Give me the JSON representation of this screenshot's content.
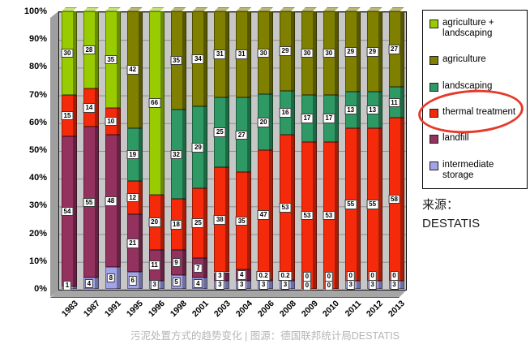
{
  "chart_data": {
    "type": "bar",
    "stacked": true,
    "unit": "percent",
    "title": "",
    "xlabel": "",
    "ylabel": "",
    "ylim": [
      0,
      100
    ],
    "grid": true,
    "legend_position": "right",
    "y_ticks": [
      "100%",
      "90%",
      "80%",
      "70%",
      "60%",
      "50%",
      "40%",
      "30%",
      "20%",
      "10%",
      "0%"
    ],
    "categories": [
      "1983",
      "1987",
      "1991",
      "1995",
      "1996",
      "1998",
      "2001",
      "2003",
      "2004",
      "2006",
      "2008",
      "2009",
      "2010",
      "2011",
      "2012",
      "2013"
    ],
    "series": [
      {
        "name": "intermediate storage",
        "color": "#a3a3ea",
        "values": [
          1,
          4,
          8,
          6,
          3,
          5,
          4,
          3,
          3,
          3,
          3,
          0,
          0,
          3,
          3,
          3
        ],
        "labels": [
          "1",
          "4",
          "8",
          "6",
          "3",
          "5",
          "4",
          "3",
          "3",
          "3",
          "3",
          "0",
          "0",
          "3",
          "3",
          "3"
        ]
      },
      {
        "name": "landfill",
        "color": "#93315f",
        "values": [
          54,
          55,
          48,
          21,
          11,
          9,
          7,
          3,
          4,
          0.2,
          0.2,
          0,
          0,
          0,
          0,
          0
        ],
        "labels": [
          "54",
          "55",
          "48",
          "21",
          "11",
          "9",
          "7",
          "3",
          "4",
          "0.2",
          "0.2",
          "0",
          "0",
          "0",
          "0",
          "0"
        ]
      },
      {
        "name": "thermal treatment",
        "color": "#f42a0a",
        "values": [
          15,
          14,
          10,
          12,
          20,
          18,
          25,
          38,
          35,
          47,
          53,
          53,
          53,
          55,
          55,
          58
        ],
        "labels": [
          "15",
          "14",
          "10",
          "12",
          "20",
          "18",
          "25",
          "38",
          "35",
          "47",
          "53",
          "53",
          "53",
          "55",
          "55",
          "58"
        ]
      },
      {
        "name": "landscaping",
        "color": "#2e9964",
        "values": [
          0,
          0,
          0,
          19,
          0,
          32,
          29,
          25,
          27,
          20,
          16,
          17,
          17,
          13,
          13,
          11
        ],
        "labels": [
          "",
          "",
          "",
          "19",
          "",
          "32",
          "29",
          "25",
          "27",
          "20",
          "16",
          "17",
          "17",
          "13",
          "13",
          "11"
        ]
      },
      {
        "name": "agriculture",
        "color": "#7f7f00",
        "values": [
          0,
          0,
          0,
          42,
          0,
          35,
          34,
          31,
          31,
          30,
          29,
          30,
          30,
          29,
          29,
          27
        ],
        "labels": [
          "",
          "",
          "",
          "42",
          "",
          "35",
          "34",
          "31",
          "31",
          "30",
          "29",
          "30",
          "30",
          "29",
          "29",
          "27"
        ]
      },
      {
        "name": "agriculture + landscaping",
        "color": "#99cc00",
        "values": [
          30,
          28,
          35,
          0,
          66,
          0,
          0,
          0,
          0,
          0,
          0,
          0,
          0,
          0,
          0,
          0
        ],
        "labels": [
          "30",
          "28",
          "35",
          "",
          "66",
          "",
          "",
          "",
          "",
          "",
          "",
          "",
          "",
          "",
          "",
          ""
        ]
      }
    ]
  },
  "legend": {
    "items": [
      {
        "label": "agriculture + landscaping",
        "color": "#99cc00"
      },
      {
        "label": "agriculture",
        "color": "#7f7f00"
      },
      {
        "label": "landscaping",
        "color": "#2e9964"
      },
      {
        "label": "thermal treatment",
        "color": "#f42a0a"
      },
      {
        "label": "landfill",
        "color": "#93315f"
      },
      {
        "label": "intermediate storage",
        "color": "#a3a3ea"
      }
    ],
    "circled_item": "thermal treatment",
    "circle_color": "#e53a2b"
  },
  "source": {
    "line1": "来源：",
    "line2": "DESTATIS"
  },
  "caption": "污泥处置方式的趋势变化 | 图源：德国联邦统计局DESTATIS"
}
